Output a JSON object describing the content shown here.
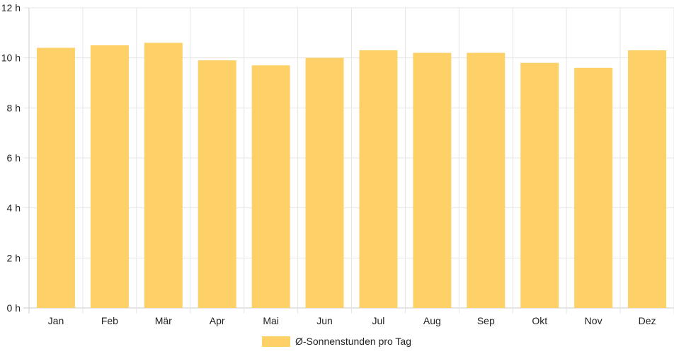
{
  "chart_data": {
    "type": "bar",
    "categories": [
      "Jan",
      "Feb",
      "Mär",
      "Apr",
      "Mai",
      "Jun",
      "Jul",
      "Aug",
      "Sep",
      "Okt",
      "Nov",
      "Dez"
    ],
    "series": [
      {
        "name": "Ø-Sonnenstunden pro Tag",
        "values": [
          10.4,
          10.5,
          10.6,
          9.9,
          9.7,
          10.0,
          10.3,
          10.2,
          10.2,
          9.8,
          9.6,
          10.3
        ]
      }
    ],
    "y_ticks": [
      "0 h",
      "2 h",
      "4 h",
      "6 h",
      "8 h",
      "10 h",
      "12 h"
    ],
    "ylim": [
      0,
      12
    ],
    "y_unit": "h",
    "grid": true,
    "legend_position": "bottom",
    "colors": {
      "bar": "#fdd068",
      "grid": "#e6e6e6",
      "axis": "#cccccc",
      "text": "#222222"
    }
  }
}
